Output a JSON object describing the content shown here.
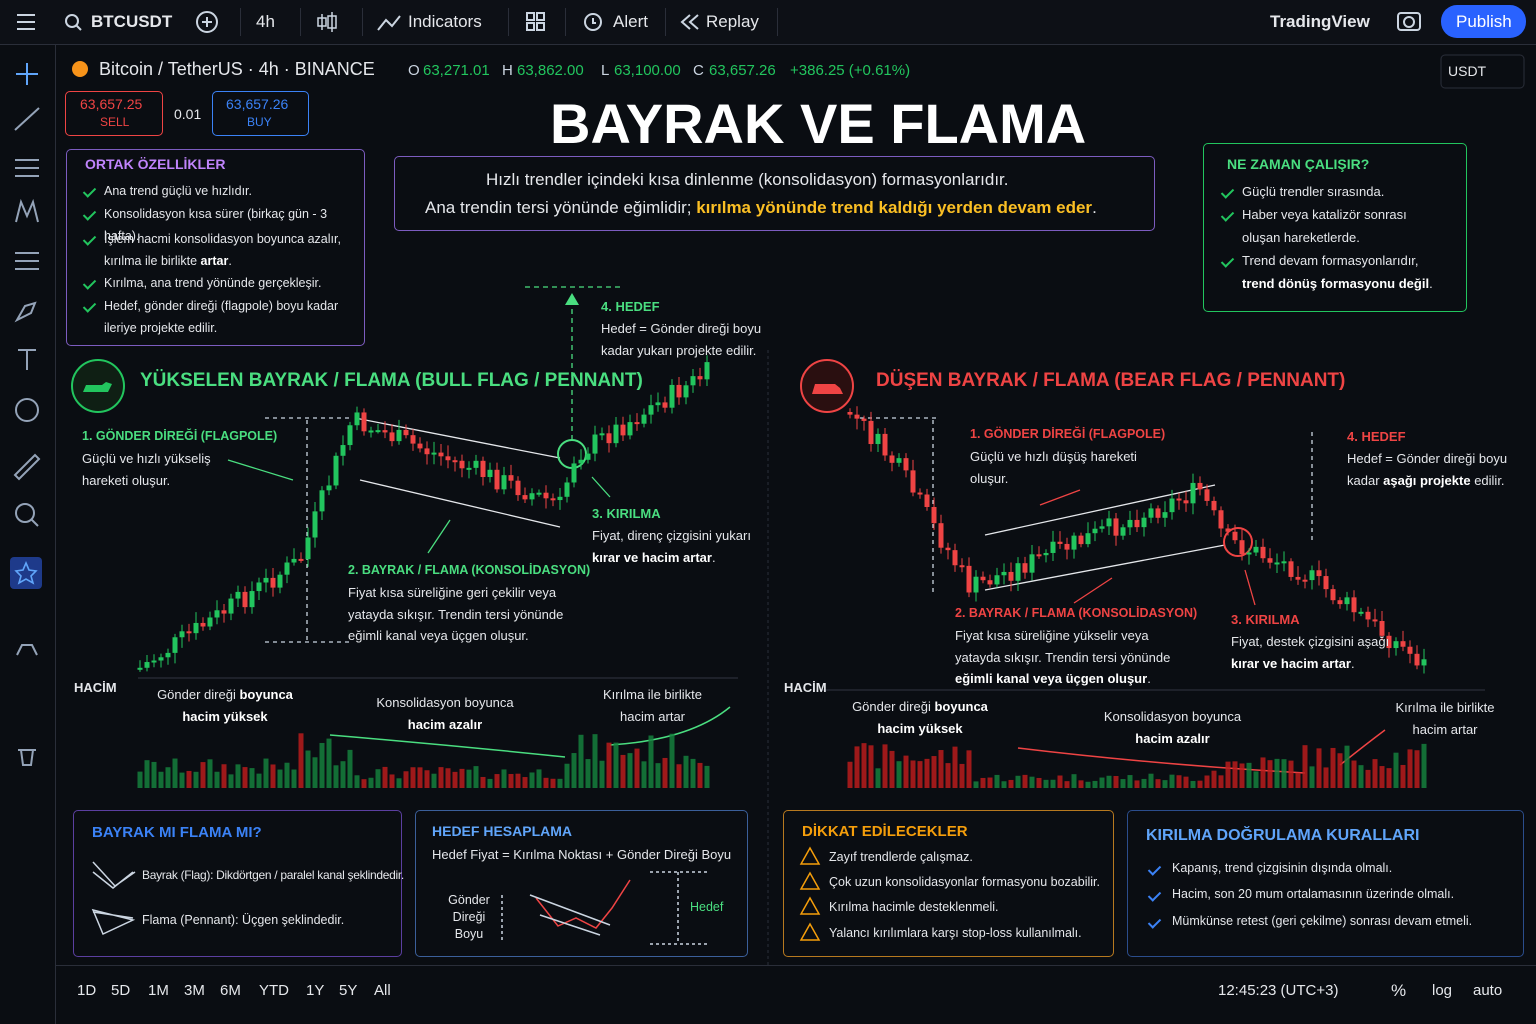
{
  "toolbar": {
    "symbol": "BTCUSDT",
    "interval": "4h",
    "indicators": "Indicators",
    "alert": "Alert",
    "replay": "Replay",
    "brand": "TradingView",
    "publish": "Publish"
  },
  "header": {
    "pair": "Bitcoin / TetherUS · 4h · BINANCE",
    "o_label": "O",
    "o": "63,271.01",
    "h_label": "H",
    "h": "63,862.00",
    "l_label": "L",
    "l": "63,100.00",
    "c_label": "C",
    "c": "63,657.26",
    "change": "+386.25 (+0.61%)",
    "currency": "USDT"
  },
  "trade": {
    "sell_price": "63,657.25",
    "sell": "SELL",
    "spread": "0.01",
    "buy_price": "63,657.26",
    "buy": "BUY"
  },
  "title": "BAYRAK VE FLAMA",
  "intro": {
    "line1": "Hızlı trendler içindeki kısa dinlenme (konsolidasyon) formasyonlarıdır.",
    "line2": [
      "Ana trendin tersi yönünde eğimlidir; ",
      "kırılma yönünde trend kaldığı yerden devam eder",
      "."
    ]
  },
  "common": {
    "title": "ORTAK ÖZELLİKLER",
    "items": [
      [
        "Ana trend güçlü ve hızlıdır."
      ],
      [
        "Konsolidasyon kısa sürer (birkaç gün - 3 hafta)."
      ],
      [
        "İşlem hacmi konsolidasyon boyunca azalır, kırılma ile birlikte ",
        "artar",
        "."
      ],
      [
        "Kırılma, ana trend yönünde gerçekleşir."
      ],
      [
        "Hedef, gönder direği (flagpole) boyu kadar ileriye projekte edilir."
      ]
    ]
  },
  "when": {
    "title": "NE ZAMAN ÇALIŞIR?",
    "items": [
      [
        "Güçlü trendler sırasında."
      ],
      [
        "Haber veya katalizör sonrası oluşan hareketlerde."
      ],
      [
        "Trend devam formasyonlarıdır, ",
        "trend dönüş formasyonu değil",
        "."
      ]
    ]
  },
  "bull": {
    "title": "YÜKSELEN BAYRAK / FLAMA (BULL FLAG / PENNANT)",
    "flagpole_title": "1. GÖNDER DİREĞİ (FLAGPOLE)",
    "flagpole_text": "Güçlü ve hızlı yükseliş hareketi oluşur.",
    "flag_title": "2. BAYRAK / FLAMA (KONSOLİDASYON)",
    "flag_text": [
      "Fiyat kısa süreliğine geri çekilir veya yatayda sıkışır. Trendin tersi yönünde eğimli kanal veya üçgen oluşur."
    ],
    "break_title": "3. KIRILMA",
    "break_text": [
      "Fiyat, direnç çizgisini yukarı ",
      "kırar ve hacim artar",
      "."
    ],
    "target_title": "4. HEDEF",
    "target_text": [
      "Hedef = Gönder direği boyu kadar yukarı projekte edilir."
    ],
    "volume_label": "HACİM",
    "vol_note1": [
      "Gönder direği ",
      "boyunca hacim yüksek"
    ],
    "vol_note2": [
      "Konsolidasyon boyunca ",
      "hacim azalır"
    ],
    "vol_note3": [
      "Kırılma ile birlikte hacim artar"
    ]
  },
  "bear": {
    "title": "DÜŞEN BAYRAK / FLAMA (BEAR FLAG / PENNANT)",
    "flagpole_title": "1. GÖNDER DİREĞİ (FLAGPOLE)",
    "flagpole_text": "Güçlü ve hızlı düşüş hareketi oluşur.",
    "flag_title": "2. BAYRAK / FLAMA (KONSOLİDASYON)",
    "flag_text": [
      "Fiyat kısa süreliğine yükselir veya yatayda sıkışır. Trendin tersi yönünde ",
      "eğimli kanal veya üçgen oluşur",
      "."
    ],
    "break_title": "3. KIRILMA",
    "break_text": [
      "Fiyat, destek çizgisini aşağı ",
      "kırar ve hacim artar",
      "."
    ],
    "target_title": "4. HEDEF",
    "target_text": [
      "Hedef = Gönder direği boyu kadar ",
      "aşağı projekte",
      " edilir."
    ],
    "volume_label": "HACİM",
    "vol_note1": [
      "Gönder direği ",
      "boyunca hacim yüksek"
    ],
    "vol_note2": [
      "Konsolidasyon boyunca ",
      "hacim azalır"
    ],
    "vol_note3": [
      "Kırılma ile birlikte hacim artar"
    ]
  },
  "flag_vs": {
    "title": "BAYRAK MI FLAMA MI?",
    "items": [
      "Bayrak (Flag): Dikdörtgen / paralel kanal şeklindedir.",
      "Flama (Pennant): Üçgen şeklindedir."
    ]
  },
  "target_calc": {
    "title": "HEDEF HESAPLAMA",
    "formula": "Hedef Fiyat = Kırılma Noktası + Gönder Direği Boyu",
    "pole_label": "Gönder Direği Boyu",
    "target_label": "Hedef"
  },
  "cautions": {
    "title": "DİKKAT EDİLECEKLER",
    "items": [
      "Zayıf trendlerde çalışmaz.",
      "Çok uzun konsolidasyonlar formasyonu bozabilir.",
      "Kırılma hacimle desteklenmeli.",
      "Yalancı kırılımlara karşı stop-loss kullanılmalı."
    ]
  },
  "rules": {
    "title": "KIRILMA DOĞRULAMA KURALLARI",
    "items": [
      "Kapanış, trend çizgisinin dışında olmalı.",
      "Hacim, son 20 mum ortalamasının üzerinde olmalı.",
      "Mümkünse retest (geri çekilme) sonrası devam etmeli."
    ]
  },
  "footer": {
    "ranges": [
      "1D",
      "5D",
      "1M",
      "3M",
      "6M",
      "YTD",
      "1Y",
      "5Y",
      "All"
    ],
    "time": "12:45:23 (UTC+3)",
    "percent": "%",
    "log": "log",
    "auto": "auto"
  }
}
